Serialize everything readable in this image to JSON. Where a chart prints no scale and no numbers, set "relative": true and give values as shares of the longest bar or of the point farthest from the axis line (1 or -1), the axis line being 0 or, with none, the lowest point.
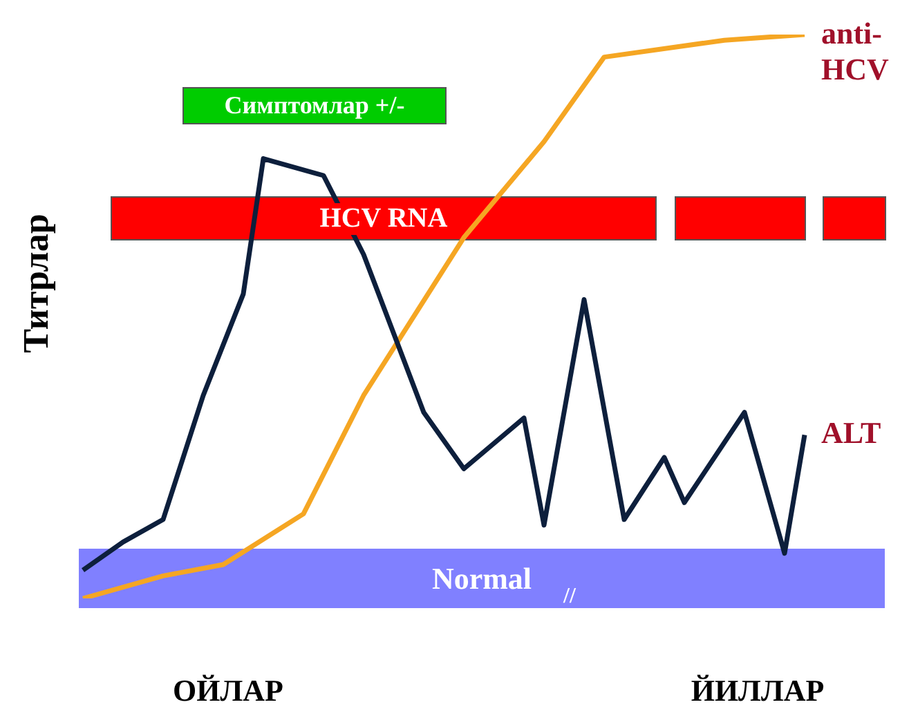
{
  "chart_data": {
    "type": "line",
    "relative": true,
    "ylabel": "Титрлар",
    "legend": false,
    "categories": [
      null,
      null,
      null,
      null,
      null,
      null,
      null,
      null,
      null,
      null,
      null,
      null,
      null,
      null,
      null,
      null,
      null,
      null,
      null,
      null,
      null,
      null,
      null,
      null,
      null,
      null,
      null,
      null,
      null,
      null,
      null,
      null,
      null,
      null,
      null,
      null,
      null,
      null,
      null,
      null,
      null
    ],
    "series": [
      {
        "name": "ALT",
        "color": "#0d1f3c",
        "values": [
          0.05,
          null,
          0.1,
          null,
          0.14,
          null,
          0.36,
          null,
          0.54,
          0.78,
          null,
          null,
          0.75,
          null,
          0.61,
          null,
          null,
          0.33,
          null,
          0.23,
          null,
          null,
          0.32,
          0.13,
          null,
          0.53,
          null,
          0.14,
          null,
          0.25,
          0.17,
          null,
          null,
          0.33,
          null,
          0.08,
          0.29,
          null,
          null,
          null,
          null
        ]
      },
      {
        "name": "anti-HCV",
        "color": "#f5a623",
        "values": [
          0,
          null,
          null,
          null,
          0.04,
          null,
          null,
          0.06,
          null,
          null,
          null,
          0.15,
          null,
          null,
          0.36,
          null,
          null,
          null,
          null,
          0.64,
          null,
          null,
          null,
          0.81,
          null,
          null,
          0.96,
          null,
          null,
          null,
          null,
          null,
          0.99,
          null,
          null,
          null,
          1,
          null,
          null,
          null,
          null
        ]
      }
    ],
    "annotations": [
      "Симптомлар +/-",
      "HCV RNA",
      "Normal",
      "ОЙЛАР",
      "ЙИЛЛАР",
      "//"
    ]
  }
}
